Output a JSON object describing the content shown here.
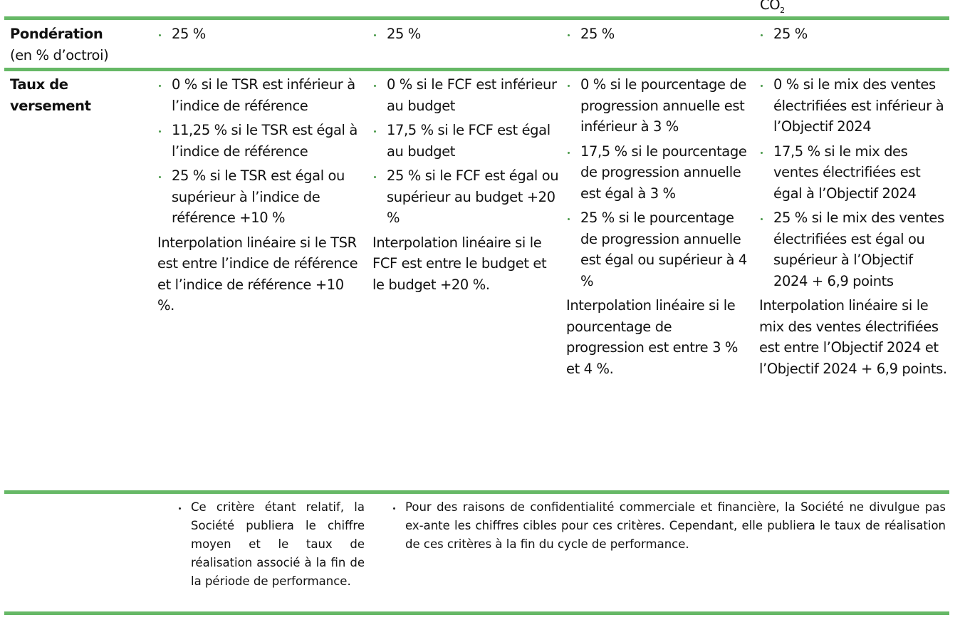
{
  "header_fragment": "CO",
  "header_fragment_sub": "2",
  "rows": {
    "weighting": {
      "label": "Pondération",
      "sublabel": "(en % d’octroi)",
      "values": [
        "25 %",
        "25 %",
        "25 %",
        "25 %"
      ]
    },
    "payout": {
      "label_line1": "Taux de",
      "label_line2": "versement",
      "col1": {
        "bullets": [
          "0 % si le TSR est inférieur à l’indice de référence",
          "11,25 % si le TSR est égal à l’indice de référence",
          "25 % si le TSR est égal ou supérieur à l’indice de référence +10 %"
        ],
        "note": "Interpolation linéaire si le TSR est entre l’indice de référence et l’indice de référence +10 %."
      },
      "col2": {
        "bullets": [
          "0 % si le FCF est inférieur au budget",
          "17,5 % si le FCF est égal au budget",
          "25 % si le FCF est égal ou supérieur  au budget +20 %"
        ],
        "note": "Interpolation linéaire si le FCF est entre le budget et le budget +20 %."
      },
      "col3": {
        "bullets": [
          "0 % si le pourcentage de progression annuelle est inférieur à 3 %",
          "17,5 % si le pourcentage de progression annuelle est égal à 3 %",
          "25 % si le pourcentage de progression annuelle est égal ou supérieur à 4 %"
        ],
        "note": "Interpolation linéaire si le pourcentage de progression est entre 3 % et 4 %."
      },
      "col4": {
        "bullets": [
          "0 % si le mix des ventes électrifiées est inférieur à l’Objectif 2024",
          "17,5 % si le mix des ventes électrifiées est égal à l’Objectif 2024",
          "25 % si le mix des ventes électrifiées est égal ou supérieur à l’Objectif 2024 + 6,9 points"
        ],
        "note": "Interpolation linéaire si le mix des ventes électrifiées est entre l’Objectif 2024 et l’Objectif 2024 + 6,9 points."
      }
    },
    "notes": {
      "relative": "Ce critère étant relatif, la Société publiera le chiffre moyen et le taux de réalisation associé à la fin de la période de performance.",
      "confidential": "Pour des raisons de confidentialité commerciale et financière, la Société ne divulgue pas ex-ante les chiffres cibles pour ces critères. Cependant, elle publiera le taux de réalisation de ces critères à la fin du cycle de performance."
    }
  },
  "colors": {
    "rule": "#66b866",
    "bullet": "#4a9a4a",
    "text": "#111111"
  }
}
